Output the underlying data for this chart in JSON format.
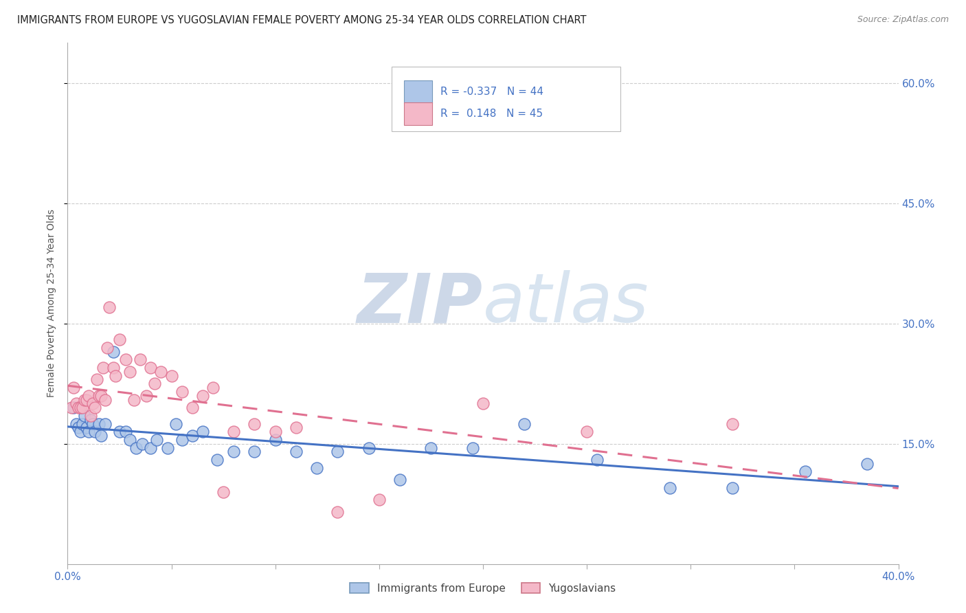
{
  "title": "IMMIGRANTS FROM EUROPE VS YUGOSLAVIAN FEMALE POVERTY AMONG 25-34 YEAR OLDS CORRELATION CHART",
  "source": "Source: ZipAtlas.com",
  "ylabel": "Female Poverty Among 25-34 Year Olds",
  "legend_label1": "Immigrants from Europe",
  "legend_label2": "Yugoslavians",
  "r1": "-0.337",
  "n1": "44",
  "r2": "0.148",
  "n2": "45",
  "color_blue": "#aec6e8",
  "color_pink": "#f4b8c8",
  "line_blue": "#4472c4",
  "line_pink": "#e07090",
  "color_text": "#4472c4",
  "color_dark": "#2d3a4a",
  "scatter_blue_x": [
    0.003,
    0.004,
    0.005,
    0.006,
    0.007,
    0.008,
    0.009,
    0.01,
    0.011,
    0.012,
    0.013,
    0.015,
    0.016,
    0.018,
    0.022,
    0.025,
    0.028,
    0.03,
    0.033,
    0.036,
    0.04,
    0.043,
    0.048,
    0.052,
    0.055,
    0.06,
    0.065,
    0.072,
    0.08,
    0.09,
    0.1,
    0.11,
    0.12,
    0.13,
    0.145,
    0.16,
    0.175,
    0.195,
    0.22,
    0.255,
    0.29,
    0.32,
    0.355,
    0.385
  ],
  "scatter_blue_y": [
    0.195,
    0.175,
    0.17,
    0.165,
    0.175,
    0.185,
    0.17,
    0.165,
    0.18,
    0.175,
    0.165,
    0.175,
    0.16,
    0.175,
    0.265,
    0.165,
    0.165,
    0.155,
    0.145,
    0.15,
    0.145,
    0.155,
    0.145,
    0.175,
    0.155,
    0.16,
    0.165,
    0.13,
    0.14,
    0.14,
    0.155,
    0.14,
    0.12,
    0.14,
    0.145,
    0.105,
    0.145,
    0.145,
    0.175,
    0.13,
    0.095,
    0.095,
    0.115,
    0.125
  ],
  "scatter_pink_x": [
    0.002,
    0.003,
    0.004,
    0.005,
    0.006,
    0.007,
    0.008,
    0.009,
    0.01,
    0.011,
    0.012,
    0.013,
    0.014,
    0.015,
    0.016,
    0.017,
    0.018,
    0.019,
    0.02,
    0.022,
    0.023,
    0.025,
    0.028,
    0.03,
    0.032,
    0.035,
    0.038,
    0.04,
    0.042,
    0.045,
    0.05,
    0.055,
    0.06,
    0.065,
    0.07,
    0.075,
    0.08,
    0.09,
    0.1,
    0.11,
    0.13,
    0.15,
    0.2,
    0.25,
    0.32
  ],
  "scatter_pink_y": [
    0.195,
    0.22,
    0.2,
    0.195,
    0.195,
    0.195,
    0.205,
    0.205,
    0.21,
    0.185,
    0.2,
    0.195,
    0.23,
    0.21,
    0.21,
    0.245,
    0.205,
    0.27,
    0.32,
    0.245,
    0.235,
    0.28,
    0.255,
    0.24,
    0.205,
    0.255,
    0.21,
    0.245,
    0.225,
    0.24,
    0.235,
    0.215,
    0.195,
    0.21,
    0.22,
    0.09,
    0.165,
    0.175,
    0.165,
    0.17,
    0.065,
    0.08,
    0.2,
    0.165,
    0.175
  ],
  "xlim": [
    0.0,
    0.4
  ],
  "ylim": [
    0.0,
    0.65
  ],
  "y_ticks": [
    0.15,
    0.3,
    0.45,
    0.6
  ],
  "x_ticks": [
    0.0,
    0.05,
    0.1,
    0.15,
    0.2,
    0.25,
    0.3,
    0.35,
    0.4
  ],
  "background_color": "#ffffff",
  "watermark_zip": "ZIP",
  "watermark_atlas": "atlas",
  "watermark_color": "#cdd8e8"
}
